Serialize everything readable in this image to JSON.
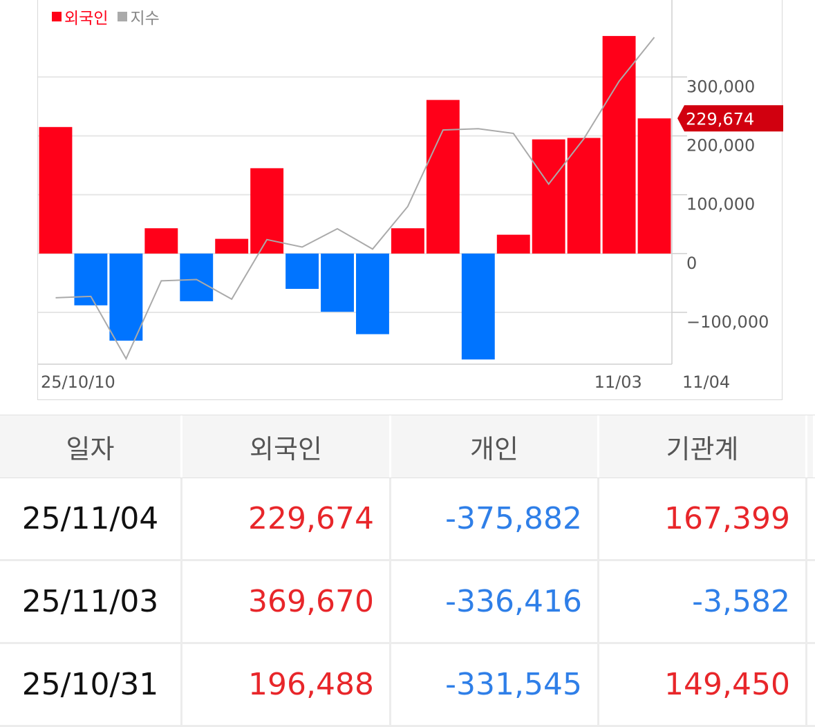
{
  "legend": {
    "foreign_label": "외국인",
    "index_label": "지수"
  },
  "colors": {
    "positive_bar": "#ff0019",
    "negative_bar": "#0074ff",
    "index_line": "#aaaaaa",
    "highlight_tag": "#d1000f",
    "positive_text": "#e8262a",
    "negative_text": "#2f7fe8"
  },
  "chart_data": {
    "type": "bar",
    "series": [
      {
        "name": "외국인",
        "values": [
          215000,
          -88000,
          -148000,
          43000,
          -81000,
          25000,
          145000,
          -60000,
          -99000,
          -137000,
          43000,
          261000,
          -180000,
          32000,
          194000,
          196488,
          369670,
          229674
        ]
      }
    ],
    "index_line": [
      10,
      12,
      -80,
      35,
      37,
      8,
      96,
      85,
      112,
      82,
      145,
      258,
      260,
      253,
      178,
      245,
      330,
      395
    ],
    "x_tick_labels": [
      "25/10/10",
      "11/03",
      "11/04"
    ],
    "y_tick_labels": [
      "300,000",
      "200,000",
      "100,000",
      "0",
      "−100,000"
    ],
    "y_ticks": [
      300000,
      200000,
      100000,
      0,
      -100000
    ],
    "ylim": [
      -188000,
      432000
    ],
    "current_value_tag": "229,674",
    "current_value": 229674,
    "grid": true,
    "legend_position": "top-left"
  },
  "table": {
    "headers": [
      "일자",
      "외국인",
      "개인",
      "기관계"
    ],
    "rows": [
      {
        "date": "25/11/04",
        "foreign": "229,674",
        "individual": "-375,882",
        "institution": "167,399"
      },
      {
        "date": "25/11/03",
        "foreign": "369,670",
        "individual": "-336,416",
        "institution": "-3,582"
      },
      {
        "date": "25/10/31",
        "foreign": "196,488",
        "individual": "-331,545",
        "institution": "149,450"
      }
    ]
  }
}
